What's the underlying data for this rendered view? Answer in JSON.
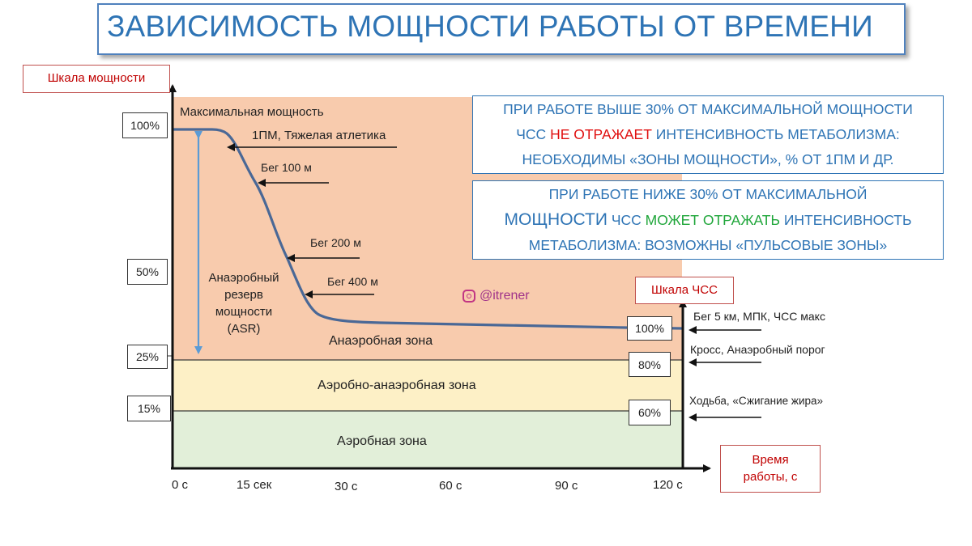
{
  "title": "ЗАВИСИМОСТЬ МОЩНОСТИ РАБОТЫ ОТ ВРЕМЕНИ",
  "power_scale_label": "Шкала мощности",
  "hr_scale_label": "Шкала ЧСС",
  "time_label_line1": "Время",
  "time_label_line2": "работы, с",
  "power_levels": [
    "100%",
    "50%",
    "25%",
    "15%"
  ],
  "hr_levels": [
    "100%",
    "80%",
    "60%"
  ],
  "time_ticks": [
    "0 с",
    "15 сек",
    "30 с",
    "60 с",
    "90 с",
    "120 с"
  ],
  "max_power_label": "Максимальная мощность",
  "events": {
    "rm": "1ПМ, Тяжелая атлетика",
    "run100": "Бег 100 м",
    "run200": "Бег 200 м",
    "run400": "Бег 400 м"
  },
  "asr": [
    "Анаэробный",
    "резерв",
    "мощности",
    "(ASR)"
  ],
  "zones": {
    "anaerobic": "Анаэробная  зона",
    "mixed": "Аэробно-анаэробная  зона",
    "aerobic": "Аэробная зона"
  },
  "hr_events": {
    "run5k": "Бег 5 км, МПК, ЧСС макс",
    "cross": "Кросс, Анаэробный порог",
    "walk": "Ходьба, «Сжигание жира»"
  },
  "watermark": "@itrener",
  "info1": {
    "line1": "ПРИ РАБОТЕ ВЫШЕ 30% ОТ МАКСИМАЛЬНОЙ МОЩНОСТИ",
    "line2_pre": "ЧСС",
    "line2_red": "НЕ ОТРАЖАЕТ",
    "line2_post": "ИНТЕНСИВНОСТЬ МЕТАБОЛИЗМА:",
    "line3": "НЕОБХОДИМЫ «ЗОНЫ МОЩНОСТИ», % ОТ 1ПМ И ДР."
  },
  "info2": {
    "line1": "ПРИ РАБОТЕ НИЖЕ 30% ОТ МАКСИМАЛЬНОЙ",
    "line2_big": "МОЩНОСТИ",
    "line2_mid": "ЧСС",
    "line2_green": "МОЖЕТ ОТРАЖАТЬ",
    "line2_post": "ИНТЕНСИВНОСТЬ",
    "line3": "МЕТАБОЛИЗМА: ВОЗМОЖНЫ  «ПУЛЬСОВЫЕ ЗОНЫ»"
  },
  "colors": {
    "anaerobic_zone": "#f8cbad",
    "mixed_zone": "#fdf0c6",
    "aerobic_zone": "#e2efd9",
    "curve": "#4a6896",
    "asr_arrow": "#5b9bd5",
    "title": "#2e74b5"
  }
}
